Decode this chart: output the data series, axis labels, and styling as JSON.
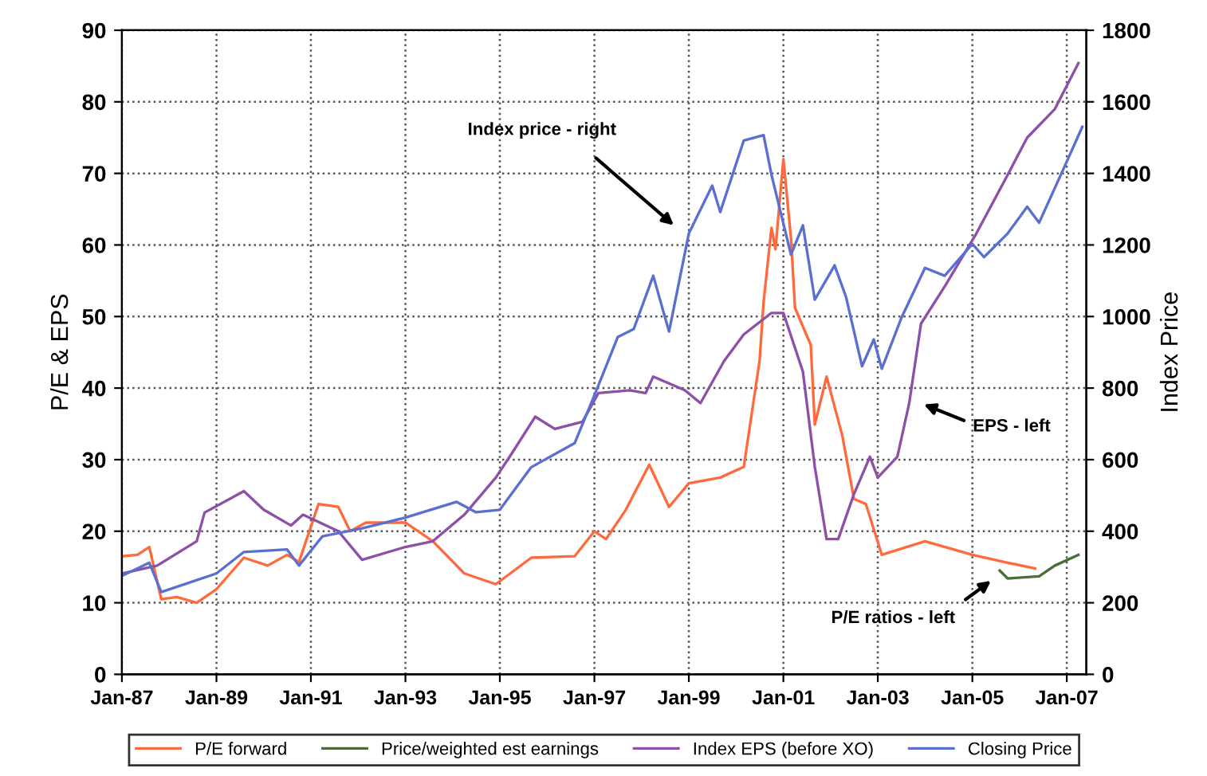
{
  "chart_data": {
    "type": "line",
    "ylabel": "P/E & EPS",
    "y2label": "Index Price",
    "xlim": [
      "1987-01",
      "2007-06"
    ],
    "xticks": [
      {
        "value": "1987-01",
        "label": "Jan-87"
      },
      {
        "value": "1989-01",
        "label": "Jan-89"
      },
      {
        "value": "1991-01",
        "label": "Jan-91"
      },
      {
        "value": "1993-01",
        "label": "Jan-93"
      },
      {
        "value": "1995-01",
        "label": "Jan-95"
      },
      {
        "value": "1997-01",
        "label": "Jan-97"
      },
      {
        "value": "1999-01",
        "label": "Jan-99"
      },
      {
        "value": "2001-01",
        "label": "Jan-01"
      },
      {
        "value": "2003-01",
        "label": "Jan-03"
      },
      {
        "value": "2005-01",
        "label": "Jan-05"
      },
      {
        "value": "2007-01",
        "label": "Jan-07"
      }
    ],
    "ylim": [
      0,
      90
    ],
    "yticks": [
      0,
      10,
      20,
      30,
      40,
      50,
      60,
      70,
      80,
      90
    ],
    "y2lim": [
      0,
      1800
    ],
    "y2ticks": [
      0,
      200,
      400,
      600,
      800,
      1000,
      1200,
      1400,
      1600,
      1800
    ],
    "grid": true,
    "legend": "bottom",
    "line_style": "solid",
    "annotations": [
      "Index price - right",
      "EPS - left",
      "P/E ratios - left"
    ],
    "series": [
      {
        "name": "P/E forward",
        "color": "#ff6a3d",
        "x": [
          "1987-01",
          "1987-05",
          "1987-08",
          "1987-11",
          "1988-03",
          "1988-08",
          "1989-01",
          "1989-08",
          "1990-02",
          "1990-07",
          "1990-10",
          "1991-03",
          "1991-08",
          "1991-11",
          "1992-03",
          "1993-01",
          "1993-08",
          "1994-04",
          "1994-12",
          "1995-09",
          "1996-08",
          "1997-01",
          "1997-04",
          "1997-09",
          "1998-03",
          "1998-08",
          "1999-01",
          "1999-09",
          "2000-03",
          "2000-07",
          "2000-08",
          "2000-10",
          "2000-11",
          "2001-01",
          "2001-03",
          "2001-04",
          "2001-08",
          "2001-09",
          "2001-12",
          "2002-04",
          "2002-07",
          "2002-10",
          "2003-02",
          "2004-01",
          "2005-01",
          "2005-10",
          "2006-05"
        ],
        "values": [
          16.5,
          16.7,
          17.8,
          10.5,
          10.8,
          10.0,
          11.9,
          16.3,
          15.2,
          16.7,
          15.7,
          23.8,
          23.4,
          20.0,
          21.2,
          21.2,
          18.6,
          14.1,
          12.6,
          16.3,
          16.5,
          20.0,
          18.9,
          23.0,
          29.3,
          23.4,
          26.7,
          27.5,
          29.0,
          43.8,
          52,
          62.4,
          59.4,
          72,
          60.9,
          51.2,
          46,
          34.9,
          41.6,
          33.4,
          24.5,
          23.8,
          16.7,
          18.6,
          16.7,
          15.6,
          14.8
        ]
      },
      {
        "name": "Price/weighted est earnings",
        "color": "#4a6e3a",
        "x": [
          "2005-08",
          "2005-10",
          "2006-06",
          "2006-10",
          "2007-04"
        ],
        "values": [
          14.5,
          13.4,
          13.7,
          15.2,
          16.7
        ]
      },
      {
        "name": "Index EPS (before XO)",
        "color": "#8e4fa8",
        "x": [
          "1987-01",
          "1987-10",
          "1988-08",
          "1988-10",
          "1989-08",
          "1990-01",
          "1990-08",
          "1990-11",
          "1991-08",
          "1992-02",
          "1993-01",
          "1993-08",
          "1994-04",
          "1994-12",
          "1995-04",
          "1995-10",
          "1996-03",
          "1996-10",
          "1997-02",
          "1997-10",
          "1998-02",
          "1998-04",
          "1998-12",
          "1999-04",
          "1999-10",
          "2000-03",
          "2000-10",
          "2001-01",
          "2001-06",
          "2001-09",
          "2001-12",
          "2002-03",
          "2002-07",
          "2002-11",
          "2003-01",
          "2003-06",
          "2003-09",
          "2003-12",
          "2004-06",
          "2005-02",
          "2005-10",
          "2006-03",
          "2006-10",
          "2007-04"
        ],
        "values": [
          14.1,
          15.2,
          18.6,
          22.6,
          25.6,
          23.0,
          20.8,
          22.3,
          20.0,
          16.0,
          17.8,
          18.6,
          22.3,
          27.5,
          30.8,
          36.0,
          34.3,
          35.3,
          39.3,
          39.7,
          39.3,
          41.6,
          39.7,
          37.9,
          43.8,
          47.5,
          50.5,
          50.5,
          42.3,
          29.0,
          18.9,
          18.9,
          25.2,
          30.4,
          27.5,
          30.4,
          37.9,
          49.0,
          54.2,
          61.6,
          69.8,
          75.0,
          79.0,
          85.4
        ]
      },
      {
        "name": "Closing Price",
        "color": "#5a6fd0",
        "axis": "y2",
        "x": [
          "1987-01",
          "1987-08",
          "1987-11",
          "1989-01",
          "1989-08",
          "1990-07",
          "1990-10",
          "1991-04",
          "1992-02",
          "1993-01",
          "1994-02",
          "1994-07",
          "1995-01",
          "1995-09",
          "1996-08",
          "1997-01",
          "1997-07",
          "1997-11",
          "1998-04",
          "1998-08",
          "1999-01",
          "1999-07",
          "1999-09",
          "2000-03",
          "2000-08",
          "2000-10",
          "2001-03",
          "2001-06",
          "2001-09",
          "2002-02",
          "2002-05",
          "2002-09",
          "2002-12",
          "2003-02",
          "2003-07",
          "2004-01",
          "2004-06",
          "2005-01",
          "2005-04",
          "2005-10",
          "2006-03",
          "2006-06",
          "2007-01",
          "2007-05"
        ],
        "values": [
          275,
          312,
          230,
          282,
          342,
          349,
          304,
          386,
          408,
          438,
          482,
          453,
          460,
          579,
          646,
          780,
          943,
          965,
          1114,
          958,
          1232,
          1366,
          1292,
          1492,
          1507,
          1396,
          1173,
          1255,
          1047,
          1143,
          1054,
          861,
          936,
          854,
          995,
          1136,
          1114,
          1203,
          1166,
          1232,
          1307,
          1262,
          1433,
          1530
        ]
      }
    ]
  }
}
